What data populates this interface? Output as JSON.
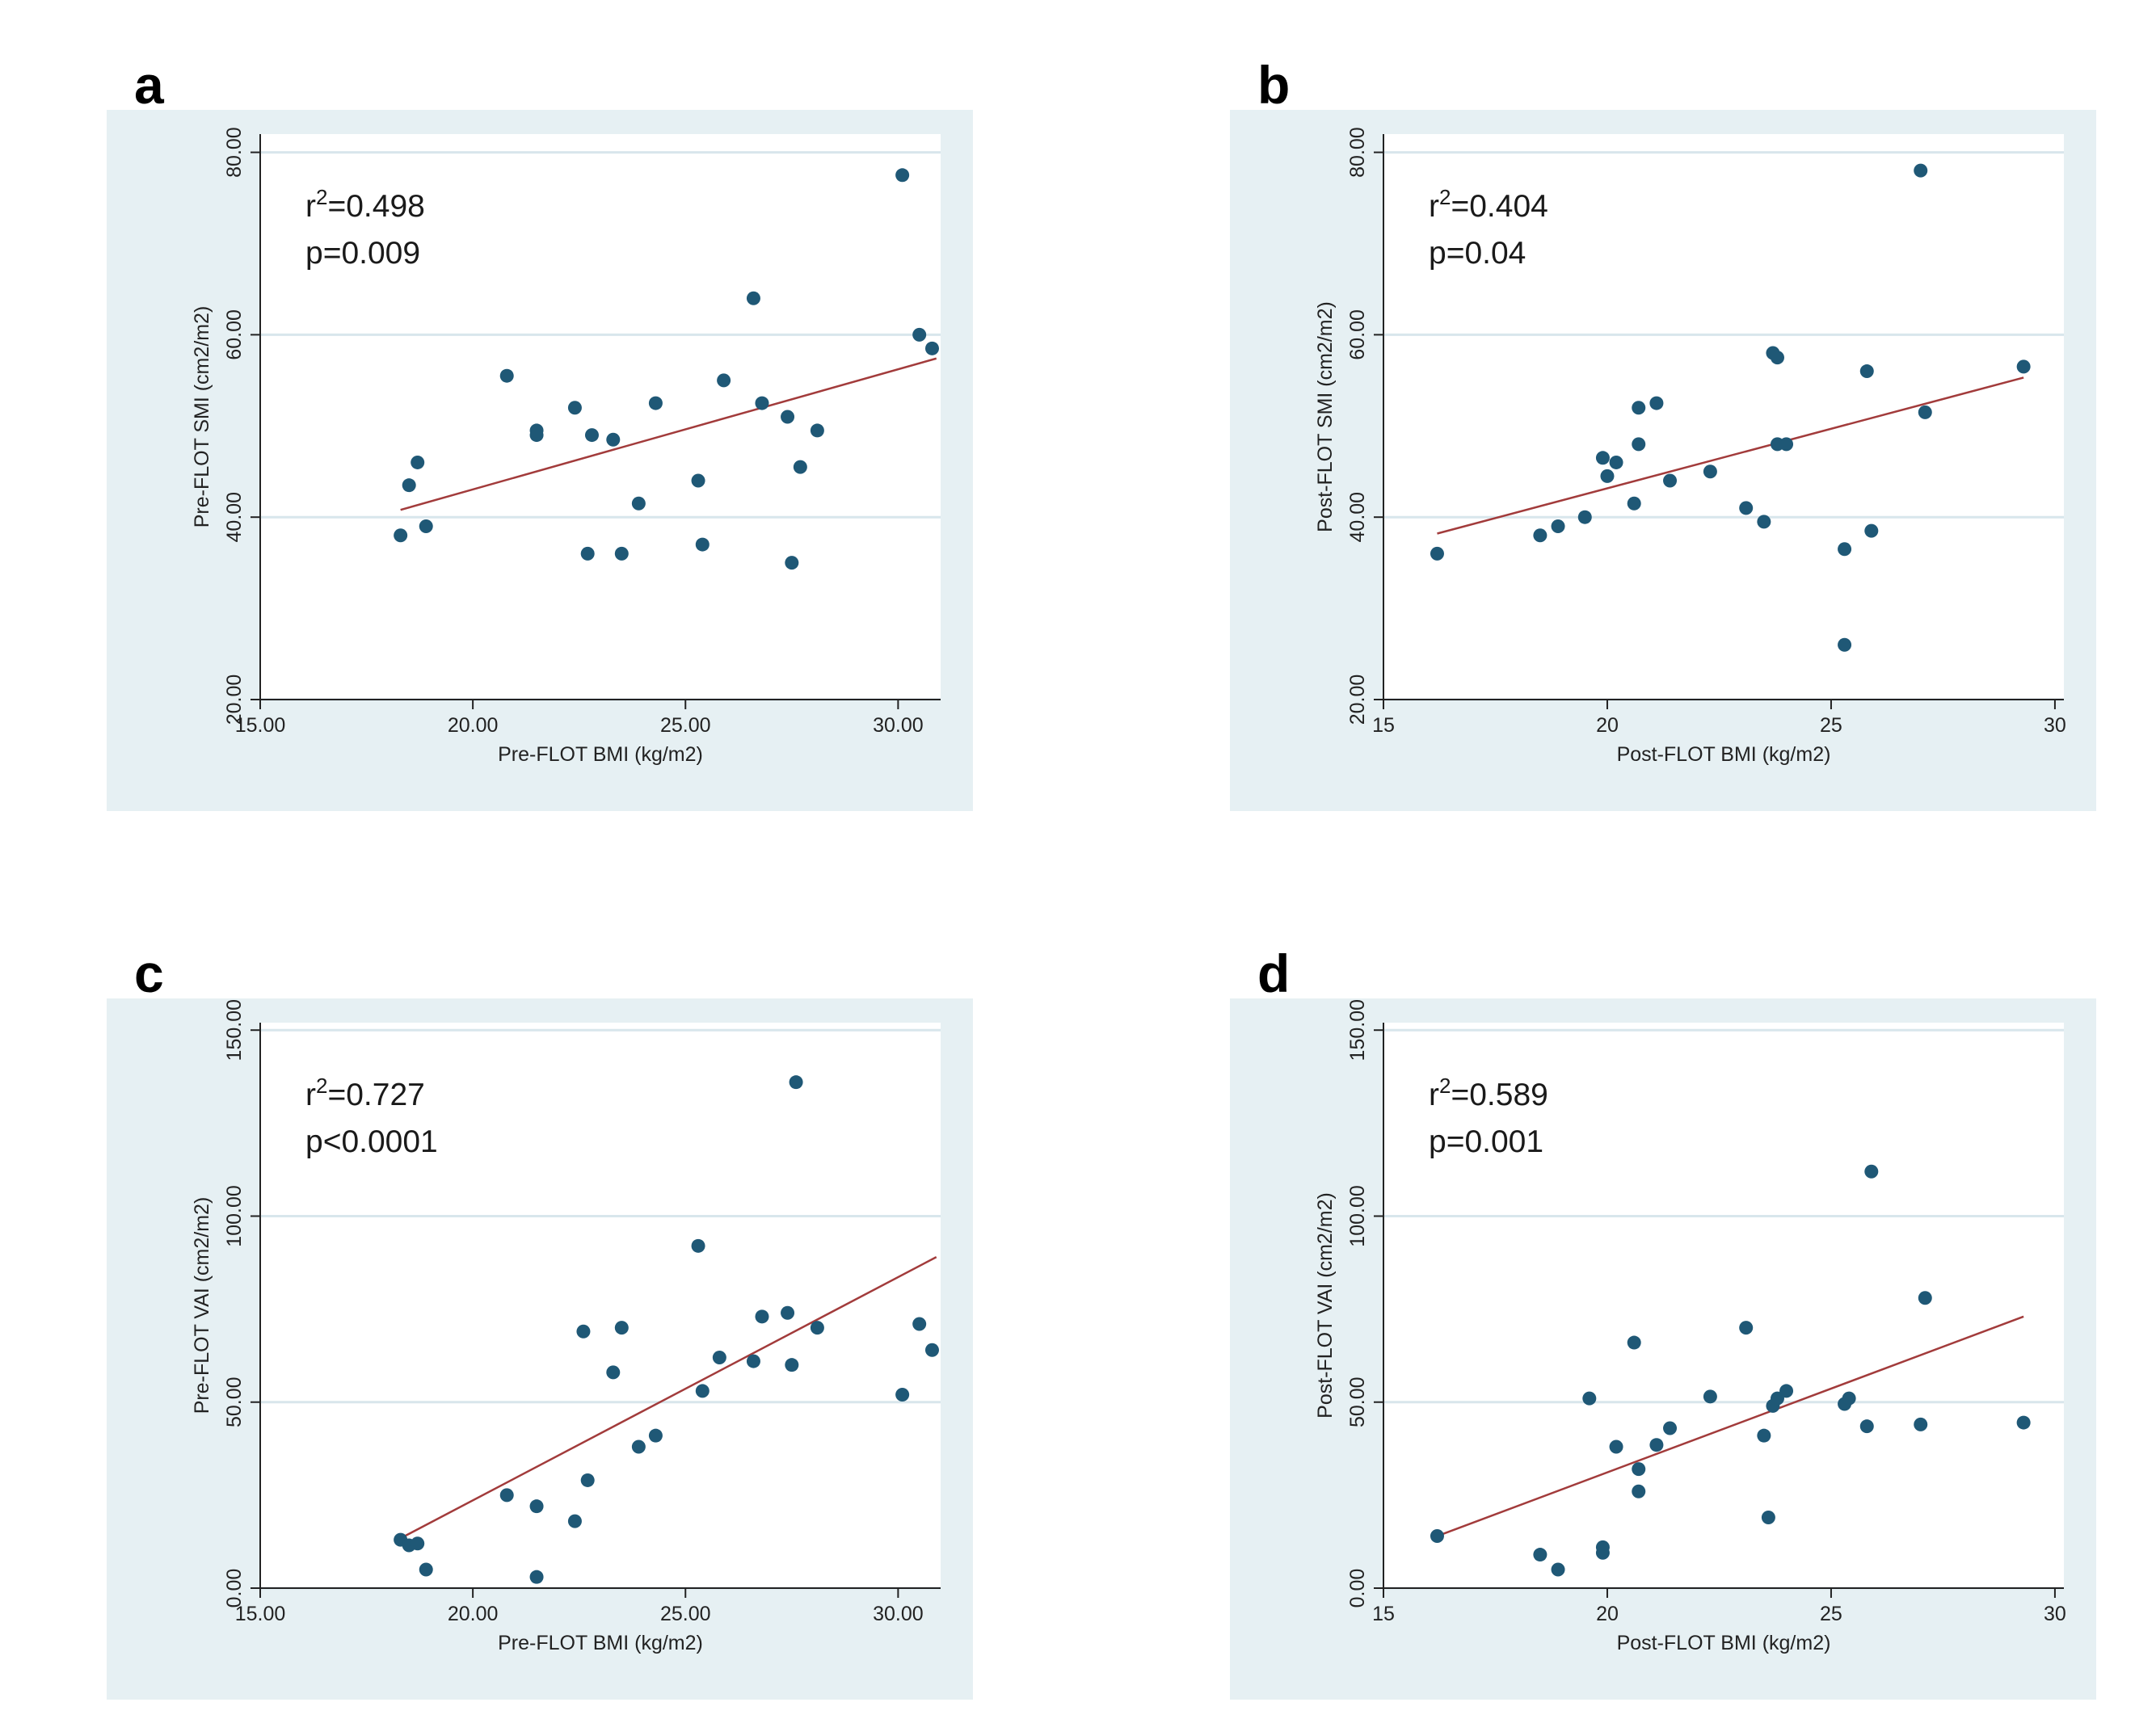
{
  "colors": {
    "panel_background": "#e6f0f3",
    "plot_background": "#ffffff",
    "gridline": "#d8e6ec",
    "point": "#1f5876",
    "fit_line": "#a23b3b",
    "axis": "#222222"
  },
  "chart_data": [
    {
      "panel": "a",
      "type": "scatter",
      "title": "",
      "xlabel": "Pre-FLOT BMI (kg/m2)",
      "ylabel": "Pre-FLOT SMI (cm2/m2)",
      "xlim": [
        15,
        31
      ],
      "ylim": [
        20,
        82
      ],
      "xticks": [
        15,
        20,
        25,
        30
      ],
      "xtick_labels": [
        "15.00",
        "20.00",
        "25.00",
        "30.00"
      ],
      "yticks": [
        20,
        40,
        60,
        80
      ],
      "ytick_labels": [
        "20.00",
        "40.00",
        "60.00",
        "80.00"
      ],
      "grid": true,
      "annotation": {
        "r2_prefix": "r",
        "r2_sup": "2",
        "r2_value": "=0.498",
        "p_text": "p=0.009"
      },
      "fit_line": {
        "x": [
          18.3,
          30.9
        ],
        "y": [
          40.8,
          57.4
        ]
      },
      "points": {
        "x": [
          18.3,
          18.5,
          18.7,
          18.9,
          20.8,
          21.5,
          21.5,
          22.4,
          22.7,
          22.8,
          23.3,
          23.5,
          23.9,
          24.3,
          25.3,
          25.4,
          25.9,
          26.6,
          26.8,
          27.4,
          27.5,
          27.7,
          28.1,
          30.1,
          30.5,
          30.8
        ],
        "y": [
          38.0,
          43.5,
          46.0,
          39.0,
          55.5,
          49.0,
          49.5,
          52.0,
          36.0,
          49.0,
          48.5,
          36.0,
          41.5,
          52.5,
          44.0,
          37.0,
          55.0,
          64.0,
          52.5,
          51.0,
          35.0,
          45.5,
          49.5,
          77.5,
          60.0,
          58.5
        ]
      }
    },
    {
      "panel": "b",
      "type": "scatter",
      "title": "",
      "xlabel": "Post-FLOT BMI (kg/m2)",
      "ylabel": "Post-FLOT SMI (cm2/m2)",
      "xlim": [
        15,
        30.2
      ],
      "ylim": [
        20,
        82
      ],
      "xticks": [
        15,
        20,
        25,
        30
      ],
      "xtick_labels": [
        "15",
        "20",
        "25",
        "30"
      ],
      "yticks": [
        20,
        40,
        60,
        80
      ],
      "ytick_labels": [
        "20.00",
        "40.00",
        "60.00",
        "80.00"
      ],
      "grid": true,
      "annotation": {
        "r2_prefix": "r",
        "r2_sup": "2",
        "r2_value": "=0.404",
        "p_text": "p=0.04"
      },
      "fit_line": {
        "x": [
          16.2,
          29.3
        ],
        "y": [
          38.2,
          55.3
        ]
      },
      "points": {
        "x": [
          16.2,
          18.5,
          18.9,
          19.5,
          19.9,
          20.0,
          20.2,
          20.6,
          20.7,
          20.7,
          21.1,
          21.4,
          22.3,
          23.1,
          23.5,
          23.7,
          23.8,
          23.8,
          24.0,
          25.3,
          25.3,
          25.8,
          25.9,
          27.0,
          27.1,
          29.3
        ],
        "y": [
          36.0,
          38.0,
          39.0,
          40.0,
          46.5,
          44.5,
          46.0,
          41.5,
          48.0,
          52.0,
          52.5,
          44.0,
          45.0,
          41.0,
          39.5,
          58.0,
          57.5,
          48.0,
          48.0,
          26.0,
          36.5,
          56.0,
          38.5,
          78.0,
          51.5,
          56.5
        ]
      }
    },
    {
      "panel": "c",
      "type": "scatter",
      "title": "",
      "xlabel": "Pre-FLOT BMI (kg/m2)",
      "ylabel": "Pre-FLOT VAI (cm2/m2)",
      "xlim": [
        15,
        31
      ],
      "ylim": [
        0,
        152
      ],
      "xticks": [
        15,
        20,
        25,
        30
      ],
      "xtick_labels": [
        "15.00",
        "20.00",
        "25.00",
        "30.00"
      ],
      "yticks": [
        0,
        50,
        100,
        150
      ],
      "ytick_labels": [
        "0.00",
        "50.00",
        "100.00",
        "150.00"
      ],
      "grid": true,
      "annotation": {
        "r2_prefix": "r",
        "r2_sup": "2",
        "r2_value": "=0.727",
        "p_text": "p<0.0001"
      },
      "fit_line": {
        "x": [
          18.4,
          30.9
        ],
        "y": [
          14.0,
          89.0
        ]
      },
      "points": {
        "x": [
          18.3,
          18.5,
          18.7,
          18.9,
          20.8,
          21.5,
          21.5,
          22.4,
          22.6,
          22.7,
          23.3,
          23.5,
          23.9,
          24.3,
          25.3,
          25.4,
          25.8,
          26.6,
          26.8,
          27.4,
          27.5,
          27.6,
          28.1,
          30.1,
          30.5,
          30.8
        ],
        "y": [
          13.0,
          11.5,
          12.0,
          5.0,
          25.0,
          3.0,
          22.0,
          18.0,
          69.0,
          29.0,
          58.0,
          70.0,
          38.0,
          41.0,
          92.0,
          53.0,
          62.0,
          61.0,
          73.0,
          74.0,
          60.0,
          136.0,
          70.0,
          52.0,
          71.0,
          64.0
        ]
      }
    },
    {
      "panel": "d",
      "type": "scatter",
      "title": "",
      "xlabel": "Post-FLOT BMI (kg/m2)",
      "ylabel": "Post-FLOT VAI (cm2/m2)",
      "xlim": [
        15,
        30.2
      ],
      "ylim": [
        0,
        152
      ],
      "xticks": [
        15,
        20,
        25,
        30
      ],
      "xtick_labels": [
        "15",
        "20",
        "25",
        "30"
      ],
      "yticks": [
        0,
        50,
        100,
        150
      ],
      "ytick_labels": [
        "0.00",
        "50.00",
        "100.00",
        "150.00"
      ],
      "grid": true,
      "annotation": {
        "r2_prefix": "r",
        "r2_sup": "2",
        "r2_value": "=0.589",
        "p_text": "p=0.001"
      },
      "fit_line": {
        "x": [
          16.2,
          29.3
        ],
        "y": [
          14.0,
          73.0
        ]
      },
      "points": {
        "x": [
          16.2,
          18.5,
          18.9,
          19.6,
          19.9,
          19.9,
          20.2,
          20.6,
          20.7,
          20.7,
          21.1,
          21.4,
          22.3,
          23.1,
          23.5,
          23.6,
          23.7,
          23.8,
          24.0,
          25.3,
          25.4,
          25.8,
          25.9,
          27.0,
          27.1,
          29.3
        ],
        "y": [
          14.0,
          9.0,
          5.0,
          51.0,
          11.0,
          9.5,
          38.0,
          66.0,
          26.0,
          32.0,
          38.5,
          43.0,
          51.5,
          70.0,
          41.0,
          19.0,
          49.0,
          51.0,
          53.0,
          49.5,
          51.0,
          43.5,
          112.0,
          44.0,
          78.0,
          44.5
        ]
      }
    }
  ]
}
